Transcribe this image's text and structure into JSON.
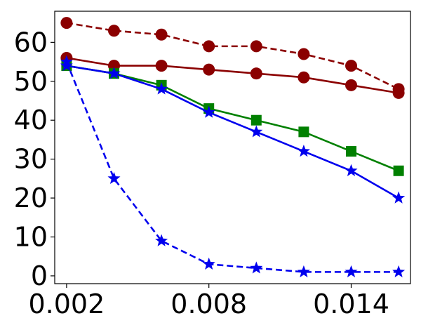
{
  "chart_data": {
    "type": "line",
    "x": [
      0.002,
      0.004,
      0.006,
      0.008,
      0.01,
      0.012,
      0.014,
      0.016
    ],
    "xlim": [
      0.0015,
      0.0165
    ],
    "ylim": [
      -2,
      68
    ],
    "xticks": [
      0.002,
      0.008,
      0.014
    ],
    "xtick_labels": [
      "0.002",
      "0.008",
      "0.014"
    ],
    "yticks": [
      0,
      10,
      20,
      30,
      40,
      50,
      60
    ],
    "ytick_labels": [
      "0",
      "10",
      "20",
      "30",
      "40",
      "50",
      "60"
    ],
    "grid": false,
    "title": "",
    "xlabel": "",
    "ylabel": "",
    "series": [
      {
        "color": "#8b0000",
        "marker": "circle",
        "linestyle": "dashed",
        "values": [
          65,
          63,
          62,
          59,
          59,
          57,
          54,
          48
        ]
      },
      {
        "color": "#8b0000",
        "marker": "circle",
        "linestyle": "solid",
        "values": [
          56,
          54,
          54,
          53,
          52,
          51,
          49,
          47
        ]
      },
      {
        "color": "#008000",
        "marker": "square",
        "linestyle": "solid",
        "values": [
          54,
          52,
          49,
          43,
          40,
          37,
          32,
          27
        ]
      },
      {
        "color": "#0000ee",
        "marker": "star",
        "linestyle": "solid",
        "values": [
          54,
          52,
          48,
          42,
          37,
          32,
          27,
          20
        ]
      },
      {
        "color": "#0000ee",
        "marker": "star",
        "linestyle": "dashed",
        "values": [
          55,
          25,
          9,
          3,
          2,
          1,
          1,
          1
        ]
      }
    ]
  }
}
